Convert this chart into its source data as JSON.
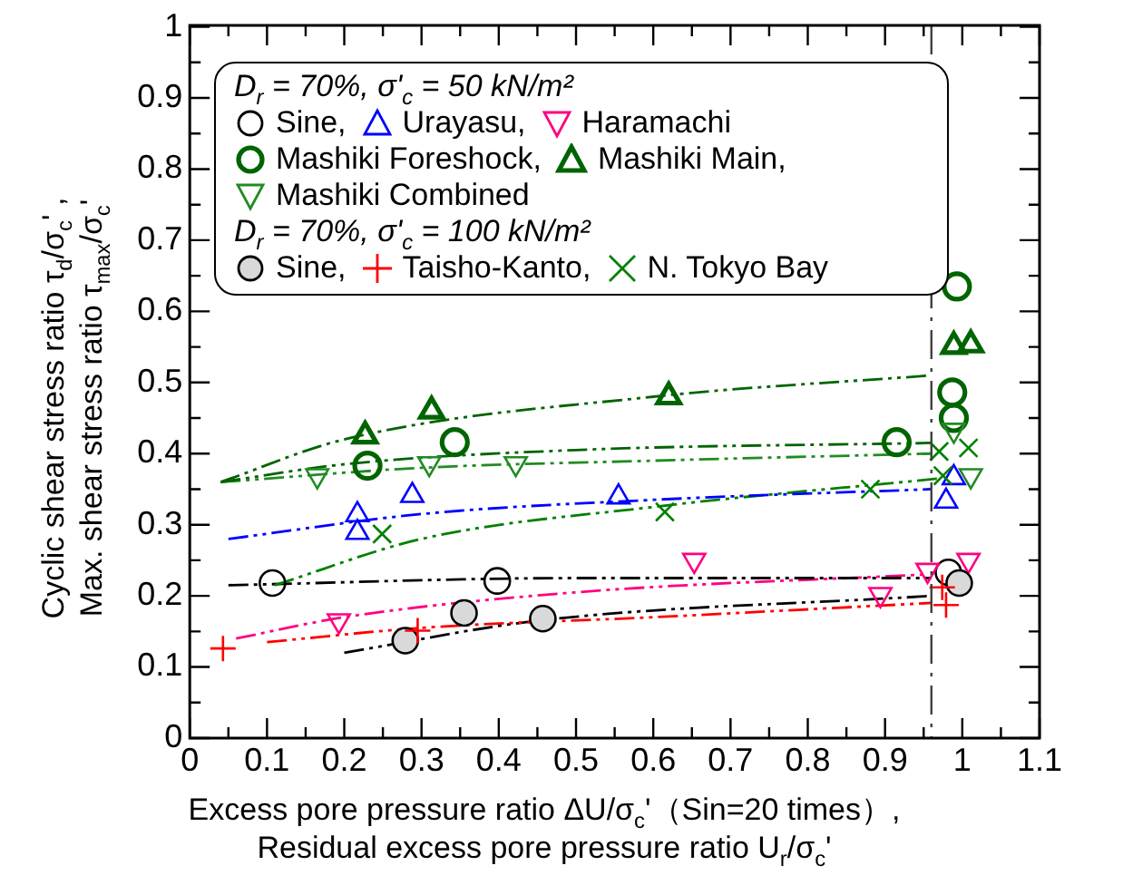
{
  "chart_data": {
    "type": "scatter",
    "xlabel": "Excess pore pressure ratio    ΔU/σ$_{c}$'（Sin=20 times）,\nResidual excess pore pressure ratio    U$_{r}$/σ$_{c}$'",
    "ylabel": "Cyclic shear stress ratio   τ$_{d}$/σ$_{c}$' ,\nMax. shear stress ratio   τ$_{max}$/σ$_{c}$'",
    "annotations": [
      "D$_{r}$ = 70%,  σ'$_{c}$ = 50 kN/m²",
      "D$_{r}$ = 70%,  σ'$_{c}$ = 100 kN/m²"
    ],
    "xlim": [
      0,
      1.1
    ],
    "xticks": [
      0,
      {
        "value": 0.05,
        "label": null
      },
      0.1,
      {
        "value": 0.15,
        "label": null
      },
      0.2,
      {
        "value": 0.25,
        "label": null
      },
      0.3,
      {
        "value": 0.35,
        "label": null
      },
      0.4,
      {
        "value": 0.45,
        "label": null
      },
      0.5,
      {
        "value": 0.55,
        "label": null
      },
      0.6,
      {
        "value": 0.65,
        "label": null
      },
      0.7,
      {
        "value": 0.75,
        "label": null
      },
      0.8,
      {
        "value": 0.85,
        "label": null
      },
      0.9,
      {
        "value": 0.95,
        "label": null
      },
      1,
      {
        "value": 1.05,
        "label": null
      },
      1.1
    ],
    "ylim": [
      0,
      1
    ],
    "yticks": [
      0,
      {
        "value": 0.05,
        "label": null
      },
      0.1,
      {
        "value": 0.15,
        "label": null
      },
      0.2,
      {
        "value": 0.25,
        "label": null
      },
      0.3,
      {
        "value": 0.35,
        "label": null
      },
      0.4,
      {
        "value": 0.45,
        "label": null
      },
      0.5,
      {
        "value": 0.55,
        "label": null
      },
      0.6,
      {
        "value": 0.65,
        "label": null
      },
      0.7,
      {
        "value": 0.75,
        "label": null
      },
      0.8,
      {
        "value": 0.85,
        "label": null
      },
      0.9,
      {
        "value": 0.95,
        "label": null
      },
      1
    ],
    "legend": "top left",
    "ref_lines": [
      {
        "axis": "x",
        "value": 0.96,
        "label": null,
        "color": "#404040",
        "line_style": "dashed"
      }
    ],
    "series": [
      {
        "name": "Sine,",
        "color": "#000000",
        "marker": "circle",
        "x": [
          0.107,
          0.398,
          0.982
        ],
        "values": [
          0.218,
          0.221,
          0.233
        ]
      },
      {
        "name": "Urayasu,",
        "color": "#0000ff",
        "marker": "triangle",
        "x": [
          0.217,
          0.217,
          0.288,
          0.555,
          0.979,
          0.989
        ],
        "values": [
          0.314,
          0.289,
          0.341,
          0.339,
          0.333,
          0.366
        ]
      },
      {
        "name": "Haramachi",
        "color": "#ff0080",
        "marker": "triangle-down",
        "x": [
          0.193,
          0.653,
          0.894,
          0.955,
          1.008
        ],
        "values": [
          0.165,
          0.25,
          0.202,
          0.236,
          0.25
        ]
      },
      {
        "name": "Mashiki Foreshock,",
        "color": "#006400",
        "marker": "circle-double",
        "x": [
          0.23,
          0.343,
          0.915,
          0.987,
          0.989,
          0.993
        ],
        "values": [
          0.383,
          0.416,
          0.416,
          0.486,
          0.45,
          0.635
        ]
      },
      {
        "name": "Mashiki Main,",
        "color": "#006400",
        "marker": "triangle-double",
        "x": [
          0.227,
          0.313,
          0.62,
          0.989,
          1.011
        ],
        "values": [
          0.425,
          0.46,
          0.48,
          0.551,
          0.553
        ]
      },
      {
        "name": "Mashiki Combined",
        "color": "#228b22",
        "marker": "triangle-down",
        "x": [
          0.165,
          0.31,
          0.422,
          0.989,
          1.011
        ],
        "values": [
          0.369,
          0.386,
          0.386,
          0.433,
          0.369
        ]
      },
      {
        "name": "Sine,",
        "color": "#d9d9d9",
        "marker": "circle-filled",
        "x": [
          0.279,
          0.355,
          0.457,
          0.996
        ],
        "values": [
          0.137,
          0.176,
          0.168,
          0.218
        ]
      },
      {
        "name": "Taisho-Kanto,",
        "color": "#ff0000",
        "marker": "cross",
        "x": [
          0.043,
          0.295,
          0.974,
          0.979
        ],
        "values": [
          0.126,
          0.151,
          0.212,
          0.187
        ]
      },
      {
        "name": "N. Tokyo Bay",
        "color": "#008000",
        "marker": "x",
        "x": [
          0.249,
          0.615,
          0.881,
          0.97,
          0.975,
          1.008
        ],
        "values": [
          0.287,
          0.318,
          0.35,
          0.403,
          0.369,
          0.408
        ]
      },
      {
        "type": "line",
        "color": "#006400",
        "line_style": "dashed",
        "x": [
          0.04,
          0.2,
          0.6,
          0.96
        ],
        "values": [
          0.36,
          0.42,
          0.48,
          0.51
        ]
      },
      {
        "type": "line",
        "color": "#006400",
        "line_style": "dashed",
        "x": [
          0.04,
          0.2,
          0.5,
          0.96
        ],
        "values": [
          0.36,
          0.385,
          0.405,
          0.415
        ]
      },
      {
        "type": "line",
        "color": "#228b22",
        "line_style": "dashed",
        "x": [
          0.04,
          0.3,
          0.6,
          0.96
        ],
        "values": [
          0.36,
          0.38,
          0.39,
          0.4
        ]
      },
      {
        "type": "line",
        "color": "#0000ff",
        "line_style": "dashed",
        "x": [
          0.05,
          0.3,
          0.6,
          0.96
        ],
        "values": [
          0.28,
          0.315,
          0.335,
          0.35
        ]
      },
      {
        "type": "line",
        "color": "#008000",
        "line_style": "dashed",
        "x": [
          0.11,
          0.3,
          0.6,
          0.97
        ],
        "values": [
          0.215,
          0.28,
          0.325,
          0.365
        ]
      },
      {
        "type": "line",
        "color": "#000000",
        "line_style": "dashed",
        "x": [
          0.05,
          0.5,
          0.96
        ],
        "values": [
          0.215,
          0.225,
          0.225
        ]
      },
      {
        "type": "line",
        "color": "#ff0080",
        "line_style": "dashed",
        "x": [
          0.06,
          0.2,
          0.5,
          0.95
        ],
        "values": [
          0.14,
          0.17,
          0.205,
          0.23
        ]
      },
      {
        "type": "line",
        "color": "#ff0000",
        "line_style": "dashed",
        "x": [
          0.1,
          0.3,
          0.6,
          0.96
        ],
        "values": [
          0.135,
          0.155,
          0.17,
          0.19
        ]
      },
      {
        "type": "line",
        "color": "#000000",
        "line_style": "dashed",
        "x": [
          0.2,
          0.45,
          0.96
        ],
        "values": [
          0.12,
          0.165,
          0.2
        ]
      }
    ]
  }
}
